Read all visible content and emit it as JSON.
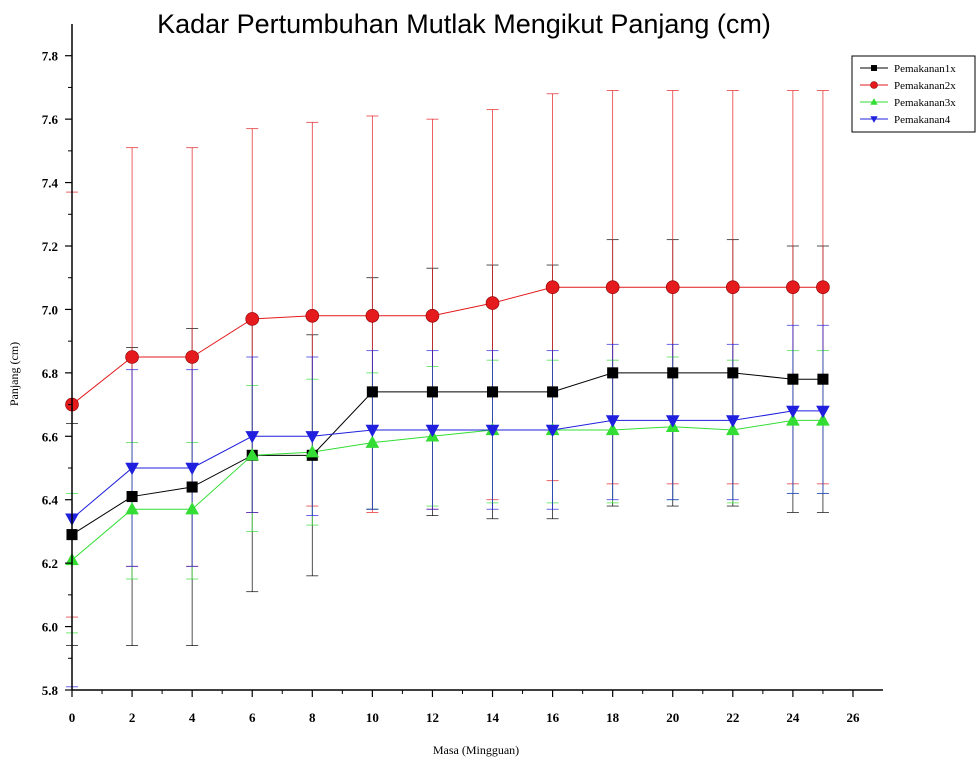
{
  "chart_data": {
    "type": "line",
    "title": "Kadar Pertumbuhan Mutlak Mengikut Panjang (cm)",
    "xlabel": "Masa (Mingguan)",
    "ylabel": "Panjang (cm)",
    "xlim": [
      0,
      27
    ],
    "ylim": [
      5.8,
      7.9
    ],
    "x_ticks": [
      0,
      2,
      4,
      6,
      8,
      10,
      12,
      14,
      16,
      18,
      20,
      22,
      24,
      26
    ],
    "y_ticks": [
      5.8,
      6.0,
      6.2,
      6.4,
      6.6,
      6.8,
      7.0,
      7.2,
      7.4,
      7.6,
      7.8
    ],
    "legend_position": "top-right",
    "grid": false,
    "x": [
      0,
      2,
      4,
      6,
      8,
      10,
      12,
      14,
      16,
      18,
      20,
      22,
      24,
      25
    ],
    "series": [
      {
        "name": "Pemakanan1x",
        "color": "#000000",
        "marker": "square",
        "values": [
          6.29,
          6.41,
          6.44,
          6.54,
          6.54,
          6.74,
          6.74,
          6.74,
          6.74,
          6.8,
          6.8,
          6.8,
          6.78,
          6.78
        ],
        "upper": [
          6.64,
          6.88,
          6.94,
          6.96,
          6.92,
          7.1,
          7.13,
          7.14,
          7.14,
          7.22,
          7.22,
          7.22,
          7.2,
          7.2
        ],
        "lower": [
          5.94,
          5.94,
          5.94,
          6.11,
          6.16,
          6.37,
          6.35,
          6.34,
          6.34,
          6.38,
          6.38,
          6.38,
          6.36,
          6.36
        ]
      },
      {
        "name": "Pemakanan2x",
        "color": "#e41a1c",
        "marker": "circle",
        "values": [
          6.7,
          6.85,
          6.85,
          6.97,
          6.98,
          6.98,
          6.98,
          7.02,
          7.07,
          7.07,
          7.07,
          7.07,
          7.07,
          7.07
        ],
        "upper": [
          7.37,
          7.51,
          7.51,
          7.57,
          7.59,
          7.61,
          7.6,
          7.63,
          7.68,
          7.69,
          7.69,
          7.69,
          7.69,
          7.69
        ],
        "lower": [
          6.03,
          6.19,
          6.19,
          6.36,
          6.38,
          6.36,
          6.37,
          6.4,
          6.46,
          6.45,
          6.45,
          6.45,
          6.45,
          6.45
        ]
      },
      {
        "name": "Pemakanan3x",
        "color": "#33dd33",
        "marker": "triangle-up",
        "values": [
          6.21,
          6.37,
          6.37,
          6.54,
          6.55,
          6.58,
          6.6,
          6.62,
          6.62,
          6.62,
          6.63,
          6.62,
          6.65,
          6.65
        ],
        "upper": [
          6.42,
          6.58,
          6.58,
          6.76,
          6.78,
          6.8,
          6.82,
          6.84,
          6.84,
          6.84,
          6.85,
          6.84,
          6.87,
          6.87
        ],
        "lower": [
          5.98,
          6.15,
          6.15,
          6.3,
          6.32,
          6.37,
          6.38,
          6.39,
          6.39,
          6.39,
          6.4,
          6.39,
          6.42,
          6.42
        ]
      },
      {
        "name": "Pemakanan4",
        "color": "#1f1fdd",
        "marker": "triangle-down",
        "values": [
          6.34,
          6.5,
          6.5,
          6.6,
          6.6,
          6.62,
          6.62,
          6.62,
          6.62,
          6.65,
          6.65,
          6.65,
          6.68,
          6.68
        ],
        "upper": [
          6.7,
          6.81,
          6.81,
          6.85,
          6.85,
          6.87,
          6.87,
          6.87,
          6.87,
          6.89,
          6.89,
          6.89,
          6.95,
          6.95
        ],
        "lower": [
          5.81,
          6.19,
          6.19,
          6.36,
          6.35,
          6.37,
          6.37,
          6.37,
          6.37,
          6.4,
          6.4,
          6.4,
          6.42,
          6.42
        ]
      }
    ]
  }
}
